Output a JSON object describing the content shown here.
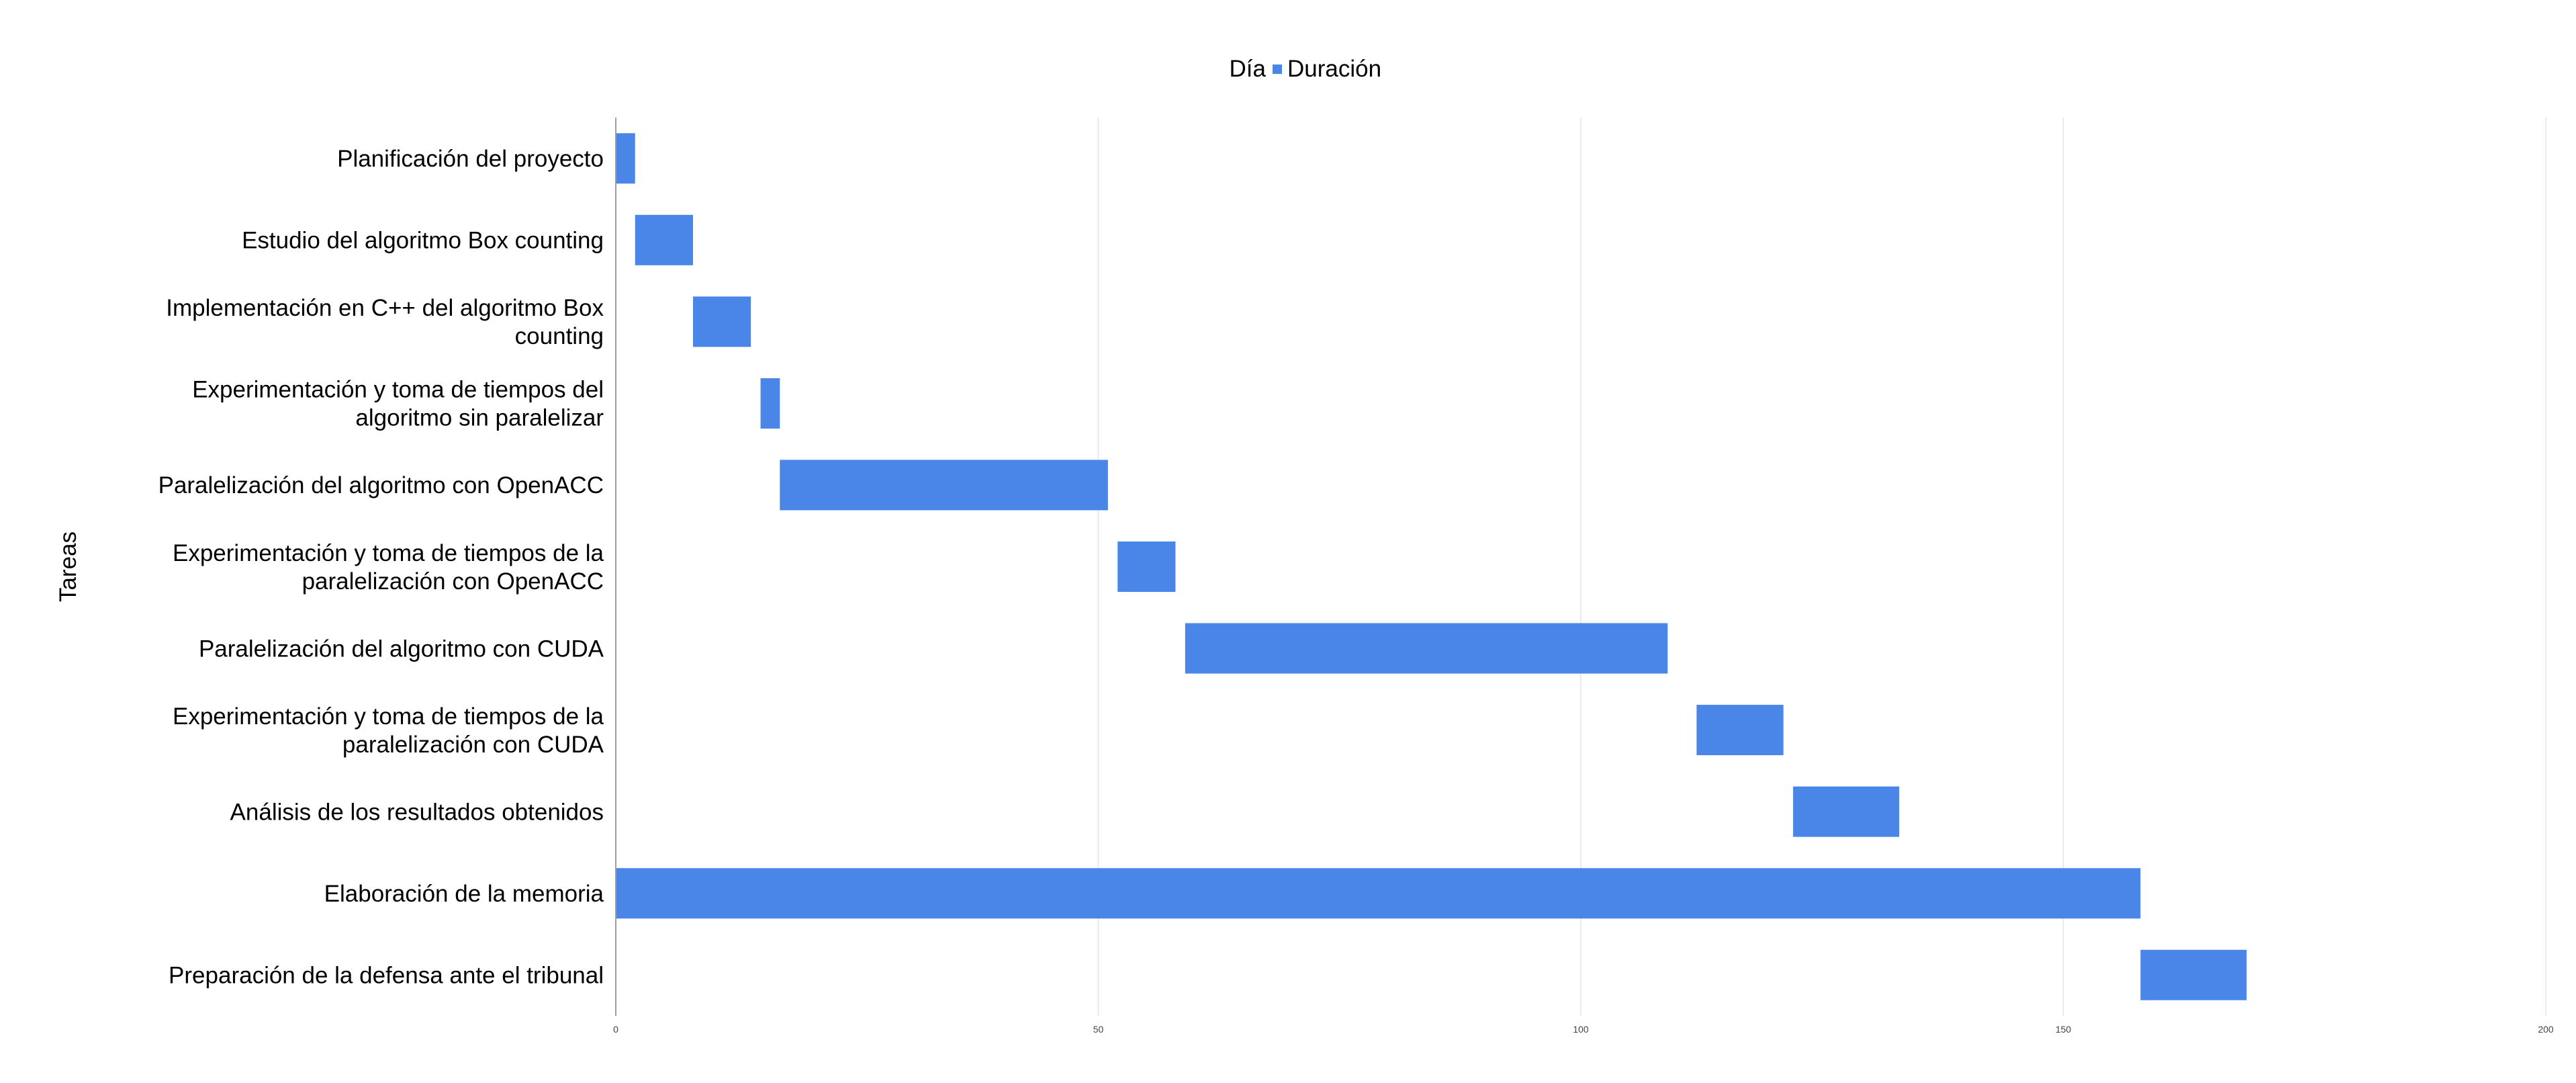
{
  "chart_data": {
    "type": "bar",
    "orientation": "horizontal",
    "stacked": true,
    "title": "",
    "legend": {
      "placement": "top-center",
      "entries": [
        {
          "name": "Día",
          "color": null
        },
        {
          "name": "Duración",
          "color": "#4a86e8"
        }
      ]
    },
    "ylabel": "Tareas",
    "xlabel": "",
    "xlim": [
      0,
      200
    ],
    "xticks": [
      0,
      50,
      100,
      150,
      200
    ],
    "grid": "vertical",
    "categories": [
      "Planificación del proyecto",
      "Estudio del algoritmo Box counting",
      "Implementación en C++ del algoritmo Box counting",
      "Experimentación y toma de tiempos del algoritmo sin paralelizar",
      "Paralelización del algoritmo con OpenACC",
      "Experimentación y toma de tiempos de la paralelización con OpenACC",
      "Paralelización del algoritmo con CUDA",
      "Experimentación y toma de tiempos de la paralelización con CUDA",
      "Análisis de los resultados obtenidos",
      "Elaboración de la memoria",
      "Preparación de la defensa ante el tribunal"
    ],
    "category_label_lines": [
      [
        "Planificación del proyecto"
      ],
      [
        "Estudio del algoritmo Box counting"
      ],
      [
        "Implementación en C++ del algoritmo Box",
        "counting"
      ],
      [
        "Experimentación y toma de tiempos del",
        "algoritmo sin paralelizar"
      ],
      [
        "Paralelización del algoritmo con OpenACC"
      ],
      [
        "Experimentación y toma de tiempos de la",
        "paralelización con OpenACC"
      ],
      [
        "Paralelización del algoritmo con CUDA"
      ],
      [
        "Experimentación y toma de tiempos de la",
        "paralelización con CUDA"
      ],
      [
        "Análisis de los resultados obtenidos"
      ],
      [
        "Elaboración de la memoria"
      ],
      [
        "Preparación de la defensa ante el tribunal"
      ]
    ],
    "series": [
      {
        "name": "Día",
        "visible": false,
        "values": [
          0,
          2,
          8,
          15,
          17,
          52,
          59,
          112,
          122,
          0,
          158
        ]
      },
      {
        "name": "Duración",
        "color": "#4a86e8",
        "values": [
          2,
          6,
          6,
          2,
          34,
          6,
          50,
          9,
          11,
          158,
          11
        ]
      }
    ]
  }
}
